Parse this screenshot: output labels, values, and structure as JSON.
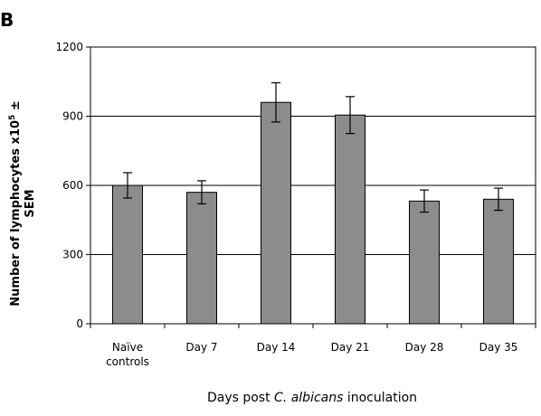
{
  "panel_letter": "B",
  "chart_data": {
    "type": "bar",
    "categories": [
      [
        "Naïve",
        "controls"
      ],
      [
        "Day 7"
      ],
      [
        "Day 14"
      ],
      [
        "Day 21"
      ],
      [
        "Day 28"
      ],
      [
        "Day 35"
      ]
    ],
    "values": [
      600,
      570,
      960,
      905,
      532,
      540
    ],
    "errors": [
      55,
      50,
      85,
      80,
      48,
      48
    ],
    "ylim": [
      0,
      1200
    ],
    "yticks": [
      0,
      300,
      600,
      900,
      1200
    ],
    "ylabel": {
      "line1_prefix": "Number of lymphocytes x10",
      "line1_sup": "5",
      "line1_suffix": " ±",
      "line2": "SEM"
    },
    "xlabel": {
      "prefix": "Days post ",
      "italic": "C. albicans",
      "suffix": " inoculation"
    },
    "grid": true,
    "bar_color": "#8c8c8c",
    "background": "#ffffff"
  }
}
